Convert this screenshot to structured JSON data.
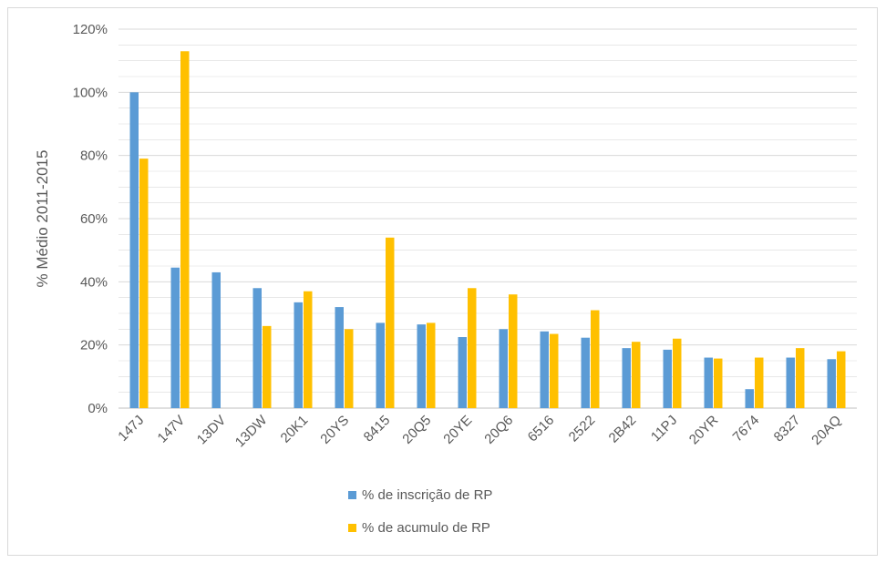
{
  "chart_data": {
    "type": "bar",
    "categories": [
      "147J",
      "147V",
      "13DV",
      "13DW",
      "20K1",
      "20YS",
      "8415",
      "20Q5",
      "20YE",
      "20Q6",
      "6516",
      "2522",
      "2B42",
      "11PJ",
      "20YR",
      "7674",
      "8327",
      "20AQ"
    ],
    "series": [
      {
        "name": "% de inscrição de RP",
        "color": "#5B9BD5",
        "values": [
          100,
          44.5,
          43,
          38,
          33.5,
          32,
          27,
          26.5,
          22.5,
          25,
          24.3,
          22.3,
          19,
          18.5,
          16,
          6,
          16,
          15.5
        ]
      },
      {
        "name": "% de acumulo de RP",
        "color": "#FFC000",
        "values": [
          79,
          113,
          0,
          26,
          37,
          25,
          54,
          27,
          38,
          36,
          23.5,
          31,
          21,
          22,
          15.7,
          16,
          19,
          18
        ]
      }
    ],
    "ylabel": "% Médio 2011-2015",
    "ylim": [
      0,
      120
    ],
    "yticks": [
      0,
      20,
      40,
      60,
      80,
      100,
      120
    ],
    "ytick_labels": [
      "0%",
      "20%",
      "40%",
      "60%",
      "80%",
      "100%",
      "120%"
    ],
    "grid": true,
    "legend_position": "bottom",
    "colors": {
      "grid": "#d9d9d9",
      "text": "#595959"
    }
  }
}
